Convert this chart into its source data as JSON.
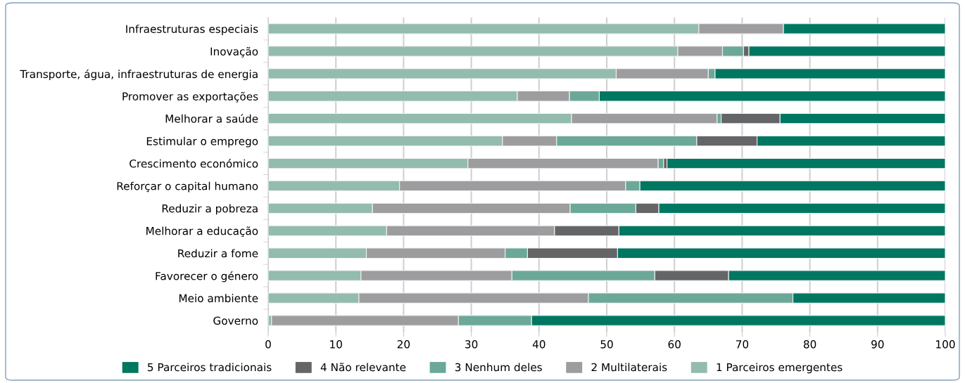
{
  "chart_data": {
    "type": "bar",
    "orientation": "horizontal",
    "stacked": true,
    "categories": [
      "Infraestruturas especiais",
      "Inovação",
      "Transporte, água, infraestruturas de energia",
      "Promover as exportações",
      "Melhorar a saúde",
      "Estimular o emprego",
      "Crescimento económico",
      "Reforçar o capital humano",
      "Reduzir a pobreza",
      "Melhorar a educação",
      "Reduzir a fome",
      "Favorecer o género",
      "Meio ambiente",
      "Governo"
    ],
    "series": [
      {
        "name": "1 Parceiros emergentes",
        "color": "#93bcae",
        "values": [
          63.6,
          60.5,
          51.4,
          36.8,
          44.8,
          34.6,
          29.5,
          19.4,
          15.4,
          17.5,
          14.5,
          13.7,
          13.4,
          0.5
        ]
      },
      {
        "name": "2 Multilaterais",
        "color": "#9d9d9f",
        "values": [
          12.5,
          6.6,
          13.6,
          7.7,
          21.5,
          8.0,
          28.1,
          33.4,
          29.2,
          24.8,
          20.5,
          22.3,
          33.9,
          27.6
        ]
      },
      {
        "name": "3 Nenhum deles",
        "color": "#6ba898",
        "values": [
          0,
          3.1,
          1.0,
          4.4,
          0.6,
          20.7,
          0.8,
          2.1,
          9.7,
          0,
          3.3,
          21.1,
          30.2,
          10.8
        ]
      },
      {
        "name": "4 Não relevante",
        "color": "#646567",
        "values": [
          0,
          0.8,
          0,
          0,
          8.7,
          8.9,
          0.5,
          0,
          3.4,
          9.5,
          13.3,
          10.9,
          0,
          0
        ]
      },
      {
        "name": "5 Parceiros tradicionais",
        "color": "#007761",
        "values": [
          23.9,
          29.0,
          34.0,
          51.1,
          24.4,
          27.8,
          41.1,
          45.1,
          42.3,
          48.2,
          48.4,
          32.0,
          22.5,
          61.1
        ]
      }
    ],
    "xlim": [
      0,
      100
    ],
    "xticks": [
      0,
      10,
      20,
      30,
      40,
      50,
      60,
      70,
      80,
      90,
      100
    ],
    "grid": "x",
    "legend": "bottom"
  }
}
